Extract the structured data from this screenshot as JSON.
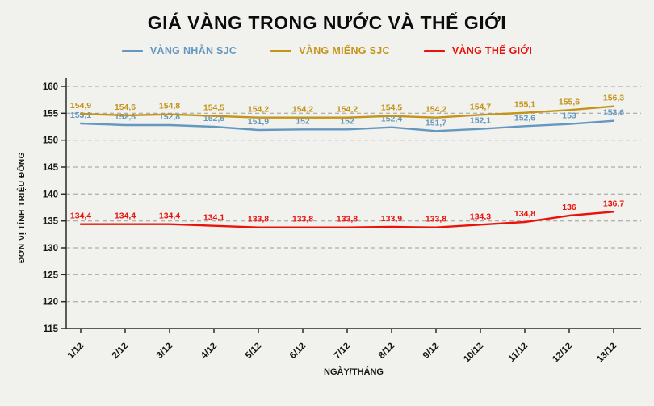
{
  "title": "GIÁ VÀNG TRONG NƯỚC VÀ THẾ GIỚI",
  "colors": {
    "background": "#f1f1ee",
    "axis": "#2a2a2a",
    "grid": "#9c9c9c",
    "text": "#151515",
    "blue": "#6598c0",
    "gold": "#c49418",
    "red": "#ea130b"
  },
  "chart_data": {
    "type": "line",
    "x": [
      "1/12",
      "2/12",
      "3/12",
      "4/12",
      "5/12",
      "6/12",
      "7/12",
      "8/12",
      "9/12",
      "10/12",
      "11/12",
      "12/12",
      "13/12"
    ],
    "xlabel": "NGÀY/THÁNG",
    "ylabel": "ĐƠN VỊ TÍNH TRIỆU ĐỒNG",
    "ylim": [
      115,
      160
    ],
    "ytick_step": 5,
    "yticks": [
      115,
      120,
      125,
      130,
      135,
      140,
      145,
      150,
      155,
      160
    ],
    "grid": true,
    "legend_position": "top",
    "series": [
      {
        "name": "VÀNG NHẪN SJC",
        "color": "#6598c0",
        "values": [
          153.1,
          152.8,
          152.8,
          152.5,
          151.9,
          152,
          152,
          152.4,
          151.7,
          152.1,
          152.6,
          153,
          153.6
        ],
        "labels": [
          "153,1",
          "152,8",
          "152,8",
          "152,5",
          "151,9",
          "152",
          "152",
          "152,4",
          "151,7",
          "152,1",
          "152,6",
          "153",
          "153,6"
        ]
      },
      {
        "name": "VÀNG MIẾNG SJC",
        "color": "#c49418",
        "values": [
          154.9,
          154.6,
          154.8,
          154.5,
          154.2,
          154.2,
          154.2,
          154.5,
          154.2,
          154.7,
          155.1,
          155.6,
          156.3
        ],
        "labels": [
          "154,9",
          "154,6",
          "154,8",
          "154,5",
          "154,2",
          "154,2",
          "154,2",
          "154,5",
          "154,2",
          "154,7",
          "155,1",
          "155,6",
          "156,3"
        ]
      },
      {
        "name": "VÀNG THẾ GIỚI",
        "color": "#ea130b",
        "values": [
          134.4,
          134.4,
          134.4,
          134.1,
          133.8,
          133.8,
          133.8,
          133.9,
          133.8,
          134.3,
          134.8,
          136,
          136.7
        ],
        "labels": [
          "134,4",
          "134,4",
          "134,4",
          "134,1",
          "133,8",
          "133,8",
          "133,8",
          "133,9",
          "133,8",
          "134,3",
          "134,8",
          "136",
          "136,7"
        ]
      }
    ]
  }
}
